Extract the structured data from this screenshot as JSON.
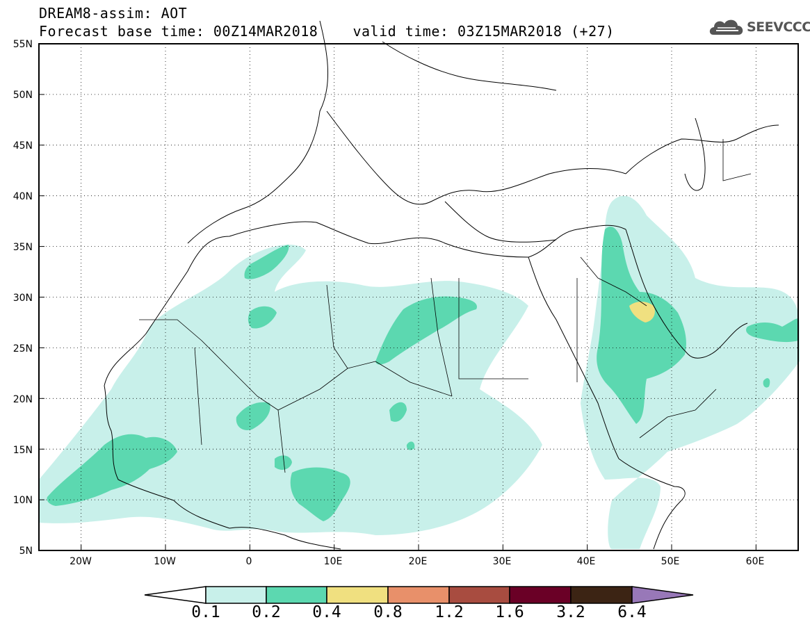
{
  "header": {
    "title_line1": "DREAM8-assim: AOT",
    "title_line2": "Forecast base time: 00Z14MAR2018    valid time: 03Z15MAR2018 (+27)"
  },
  "logo": {
    "text": "SEEVCCC"
  },
  "map": {
    "lon_range": [
      -25,
      65
    ],
    "lat_range": [
      5,
      55
    ],
    "lon_ticks": [
      "20W",
      "10W",
      "0",
      "10E",
      "20E",
      "30E",
      "40E",
      "50E",
      "60E"
    ],
    "lat_ticks": [
      "55N",
      "50N",
      "45N",
      "40N",
      "35N",
      "30N",
      "25N",
      "20N",
      "15N",
      "10N",
      "5N"
    ],
    "colors": {
      "c01": "#c8f0ea",
      "c02": "#5cd8b0",
      "c04": "#f0e080"
    }
  },
  "colorbar": {
    "labels": [
      "0.1",
      "0.2",
      "0.4",
      "0.8",
      "1.2",
      "1.6",
      "3.2",
      "6.4"
    ],
    "colors": [
      "#c8f0ea",
      "#5cd8b0",
      "#f0e080",
      "#e8906a",
      "#a84c40",
      "#6a0026",
      "#3c2414",
      "#9878b8"
    ]
  }
}
